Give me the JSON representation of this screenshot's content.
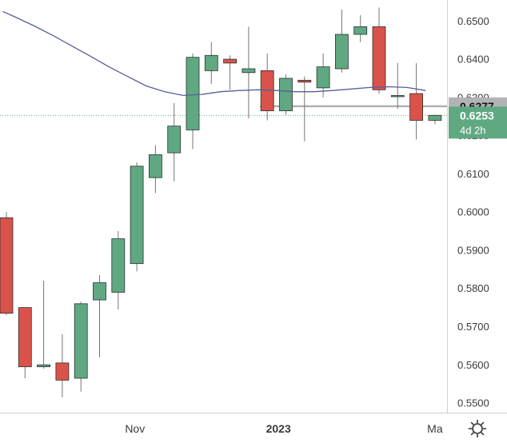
{
  "chart_data": {
    "type": "candlestick",
    "title": "",
    "xlabel": "",
    "ylabel": "",
    "ylim": [
      0.5475,
      0.6555
    ],
    "grid": false,
    "price_axis": {
      "ticks": [
        "0.6500",
        "0.6400",
        "0.6300",
        "0.6200",
        "0.6100",
        "0.6000",
        "0.5900",
        "0.5800",
        "0.5700",
        "0.5600",
        "0.5500"
      ]
    },
    "time_axis": {
      "ticks": [
        {
          "index": 6.9,
          "label": "Nov",
          "bold": false
        },
        {
          "index": 14.6,
          "label": "2023",
          "bold": true
        },
        {
          "index": 23.0,
          "label": "Ma",
          "bold": false
        }
      ]
    },
    "candles": [
      {
        "o": 0.5985,
        "h": 0.6,
        "l": 0.573,
        "c": 0.5735
      },
      {
        "o": 0.575,
        "h": 0.575,
        "l": 0.5565,
        "c": 0.5595
      },
      {
        "o": 0.5595,
        "h": 0.582,
        "l": 0.559,
        "c": 0.56
      },
      {
        "o": 0.5605,
        "h": 0.568,
        "l": 0.5515,
        "c": 0.556
      },
      {
        "o": 0.5565,
        "h": 0.5765,
        "l": 0.553,
        "c": 0.576
      },
      {
        "o": 0.577,
        "h": 0.5835,
        "l": 0.562,
        "c": 0.5815
      },
      {
        "o": 0.579,
        "h": 0.595,
        "l": 0.5745,
        "c": 0.593
      },
      {
        "o": 0.5865,
        "h": 0.613,
        "l": 0.5845,
        "c": 0.612
      },
      {
        "o": 0.609,
        "h": 0.6175,
        "l": 0.605,
        "c": 0.615
      },
      {
        "o": 0.6155,
        "h": 0.6285,
        "l": 0.608,
        "c": 0.6225
      },
      {
        "o": 0.6215,
        "h": 0.6415,
        "l": 0.6165,
        "c": 0.6405
      },
      {
        "o": 0.637,
        "h": 0.6445,
        "l": 0.6335,
        "c": 0.641
      },
      {
        "o": 0.64,
        "h": 0.641,
        "l": 0.632,
        "c": 0.639
      },
      {
        "o": 0.6365,
        "h": 0.6485,
        "l": 0.6245,
        "c": 0.6375
      },
      {
        "o": 0.637,
        "h": 0.6415,
        "l": 0.624,
        "c": 0.6265
      },
      {
        "o": 0.6265,
        "h": 0.636,
        "l": 0.6255,
        "c": 0.635
      },
      {
        "o": 0.6345,
        "h": 0.6355,
        "l": 0.6185,
        "c": 0.634
      },
      {
        "o": 0.6325,
        "h": 0.6415,
        "l": 0.63,
        "c": 0.638
      },
      {
        "o": 0.6375,
        "h": 0.653,
        "l": 0.6365,
        "c": 0.6465
      },
      {
        "o": 0.6465,
        "h": 0.6515,
        "l": 0.6445,
        "c": 0.6485
      },
      {
        "o": 0.6485,
        "h": 0.6535,
        "l": 0.631,
        "c": 0.632
      },
      {
        "o": 0.6305,
        "h": 0.639,
        "l": 0.627,
        "c": 0.6305
      },
      {
        "o": 0.631,
        "h": 0.639,
        "l": 0.619,
        "c": 0.624
      },
      {
        "o": 0.624,
        "h": 0.6255,
        "l": 0.623,
        "c": 0.6253
      }
    ],
    "moving_average": [
      {
        "i": -0.2,
        "v": 0.6525
      },
      {
        "i": 0.5,
        "v": 0.651
      },
      {
        "i": 1.5,
        "v": 0.6487
      },
      {
        "i": 2.5,
        "v": 0.6462
      },
      {
        "i": 3.5,
        "v": 0.6435
      },
      {
        "i": 4.5,
        "v": 0.6408
      },
      {
        "i": 5.5,
        "v": 0.638
      },
      {
        "i": 6.5,
        "v": 0.6355
      },
      {
        "i": 7.5,
        "v": 0.633
      },
      {
        "i": 8.5,
        "v": 0.6315
      },
      {
        "i": 9.5,
        "v": 0.6305
      },
      {
        "i": 10.5,
        "v": 0.6308
      },
      {
        "i": 11.5,
        "v": 0.6315
      },
      {
        "i": 12.5,
        "v": 0.6318
      },
      {
        "i": 13.5,
        "v": 0.632
      },
      {
        "i": 14.5,
        "v": 0.6318
      },
      {
        "i": 15.5,
        "v": 0.6315
      },
      {
        "i": 16.5,
        "v": 0.6315
      },
      {
        "i": 17.5,
        "v": 0.6318
      },
      {
        "i": 18.5,
        "v": 0.6322
      },
      {
        "i": 19.5,
        "v": 0.6326
      },
      {
        "i": 20.5,
        "v": 0.6328
      },
      {
        "i": 21.5,
        "v": 0.6326
      },
      {
        "i": 22.5,
        "v": 0.6318
      }
    ],
    "horizontal_level": {
      "value": 0.6277,
      "label": "0.6277"
    },
    "current_price": {
      "value": 0.6253,
      "label": "0.6253",
      "countdown": "4d 2h"
    },
    "colors": {
      "up": "#5fa882",
      "down": "#d9534a",
      "wick": "#747474",
      "ma": "#565e9c",
      "level_line": "#b0b0b0",
      "level_badge": "#b3b3b3",
      "price_badge": "#5fa882",
      "axis_text": "#3a3a3a"
    }
  },
  "settings": {
    "icon": "gear-icon"
  }
}
